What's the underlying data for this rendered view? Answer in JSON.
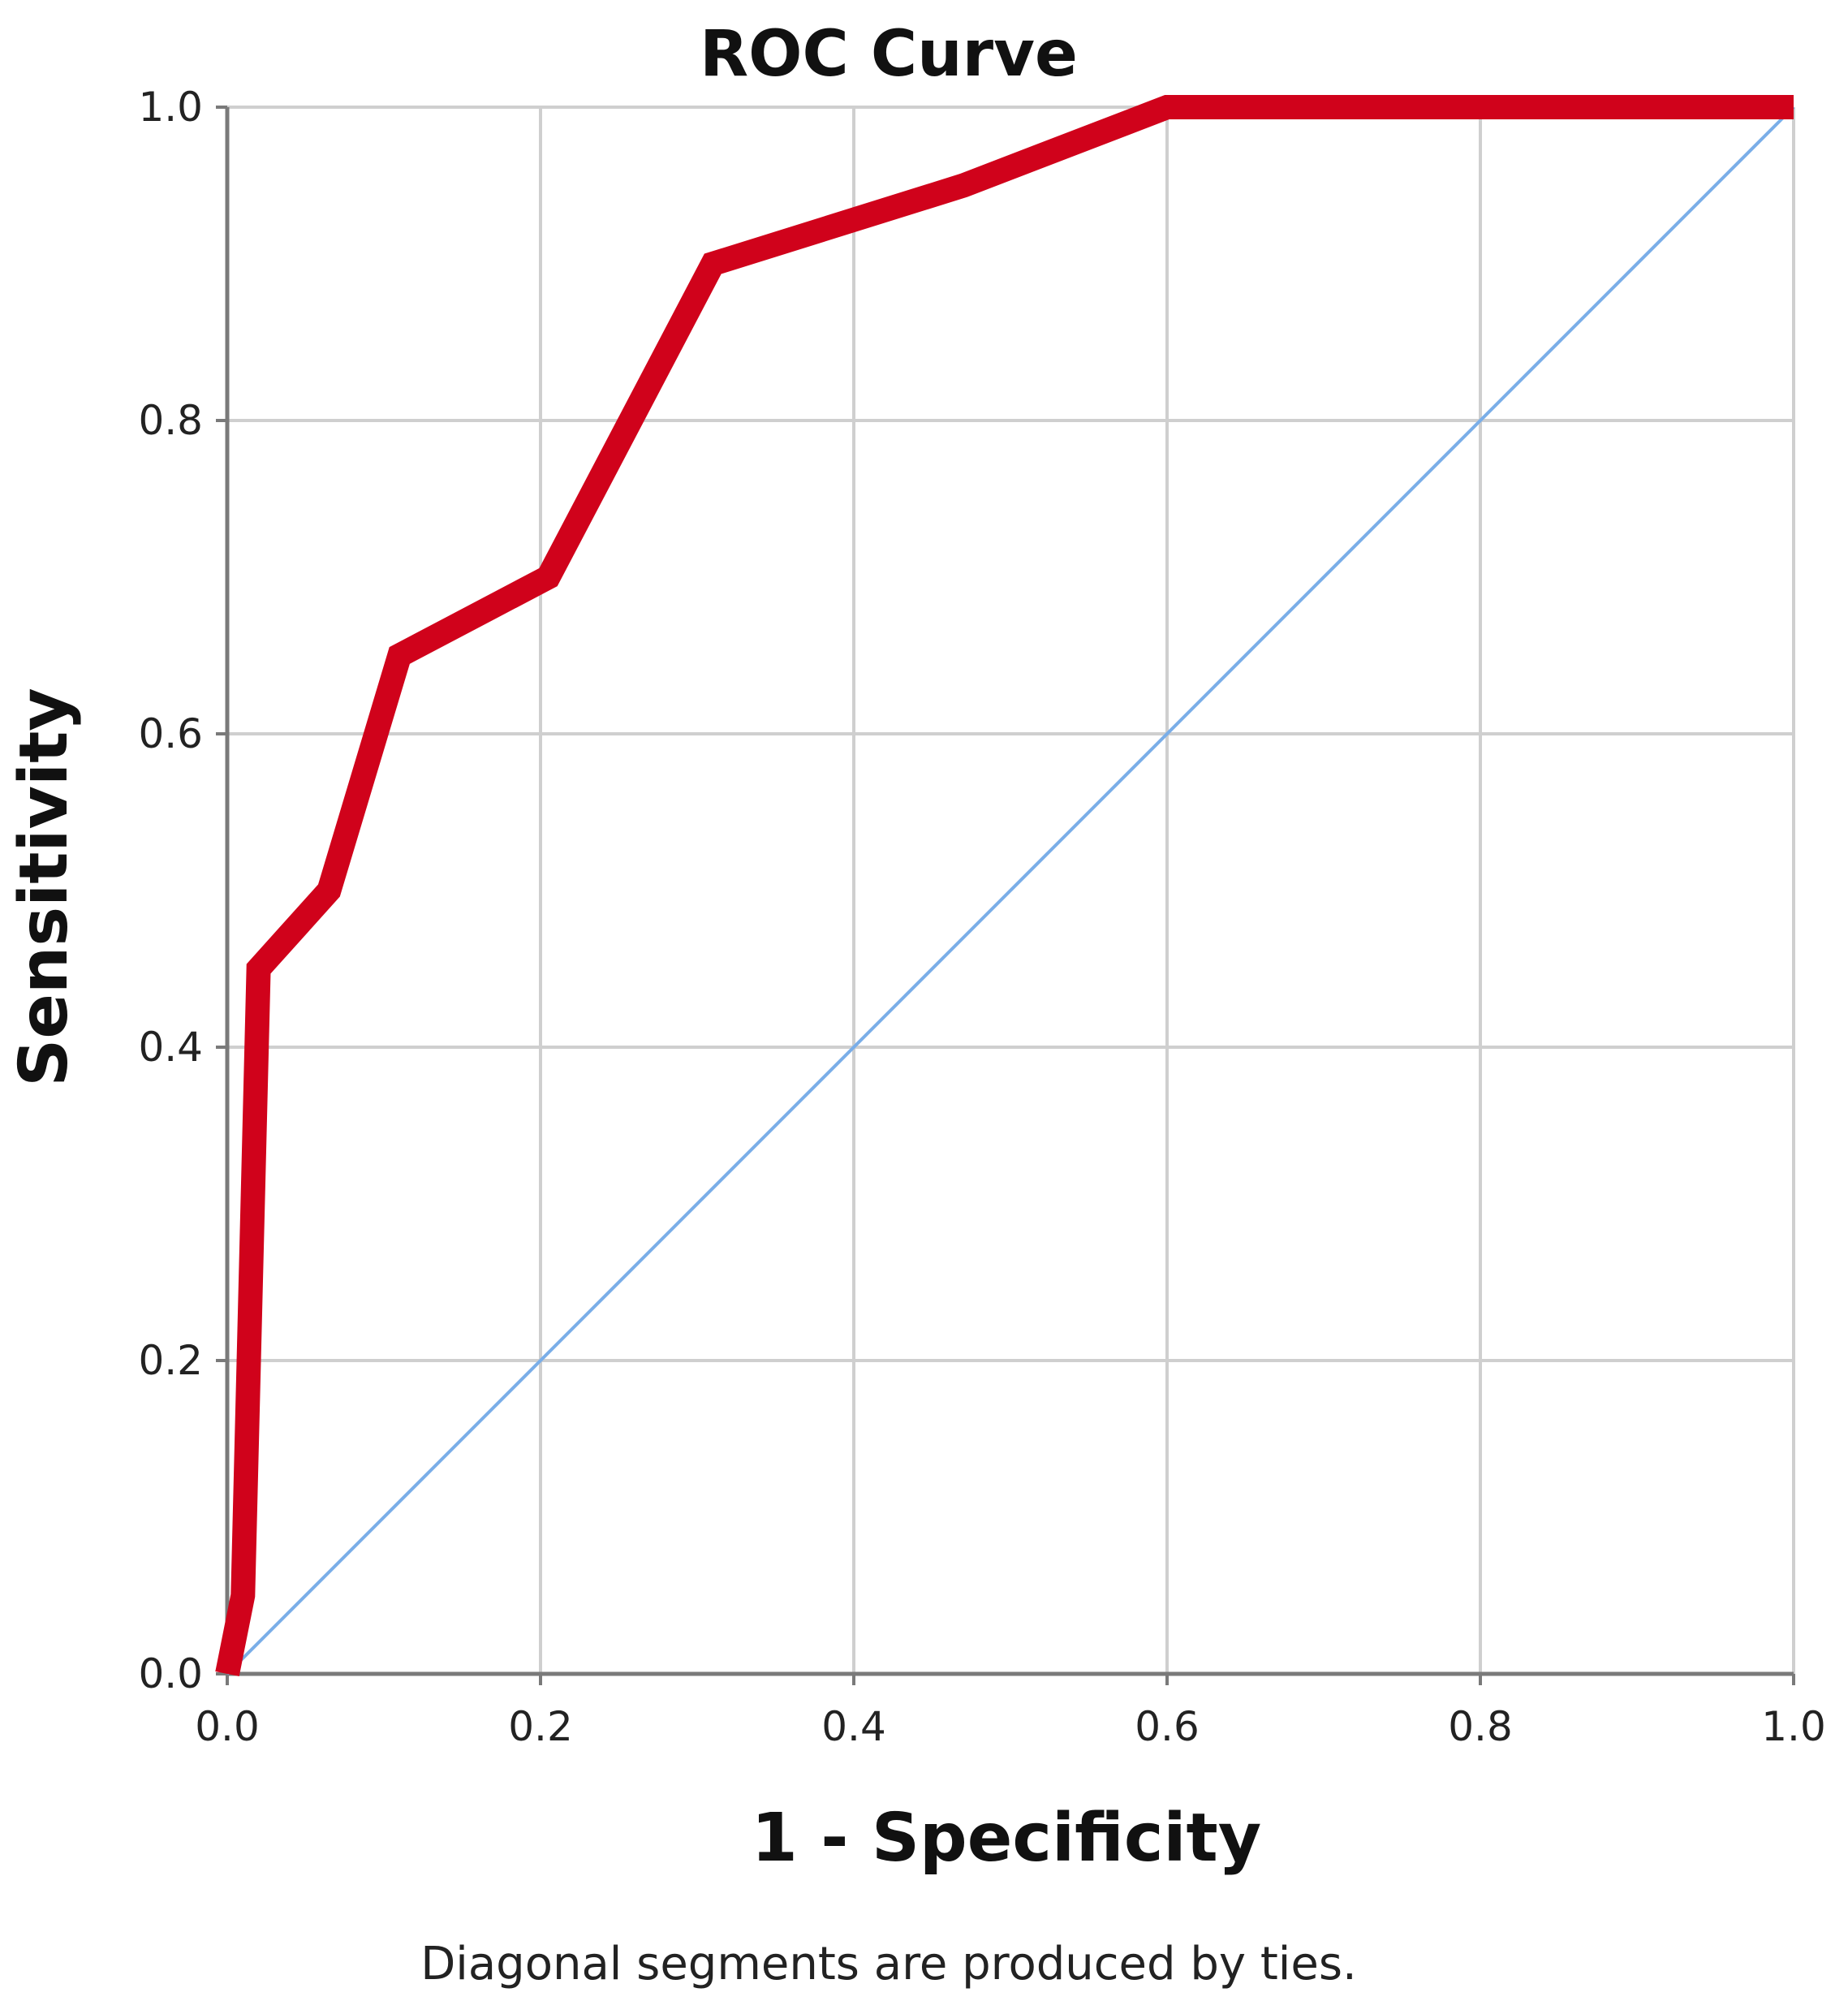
{
  "chart_data": {
    "type": "line",
    "title": "ROC Curve",
    "xlabel": "1 - Specificity",
    "ylabel": "Sensitivity",
    "footnote": "Diagonal segments are produced by ties.",
    "xlim": [
      0.0,
      1.0
    ],
    "ylim": [
      0.0,
      1.0
    ],
    "grid": true,
    "x_ticks": [
      "0.0",
      "0.2",
      "0.4",
      "0.6",
      "0.8",
      "1.0"
    ],
    "y_ticks": [
      "0.0",
      "0.2",
      "0.4",
      "0.6",
      "0.8",
      "1.0"
    ],
    "series": [
      {
        "color": "#d0021b",
        "points": [
          [
            0.0,
            0.0
          ],
          [
            0.01,
            0.05
          ],
          [
            0.02,
            0.45
          ],
          [
            0.065,
            0.5
          ],
          [
            0.11,
            0.65
          ],
          [
            0.205,
            0.7
          ],
          [
            0.31,
            0.9
          ],
          [
            0.47,
            0.95
          ],
          [
            0.6,
            1.0
          ],
          [
            1.0,
            1.0
          ]
        ]
      },
      {
        "color": "#7aaee8",
        "points": [
          [
            0.0,
            0.0
          ],
          [
            1.0,
            1.0
          ]
        ]
      }
    ]
  }
}
